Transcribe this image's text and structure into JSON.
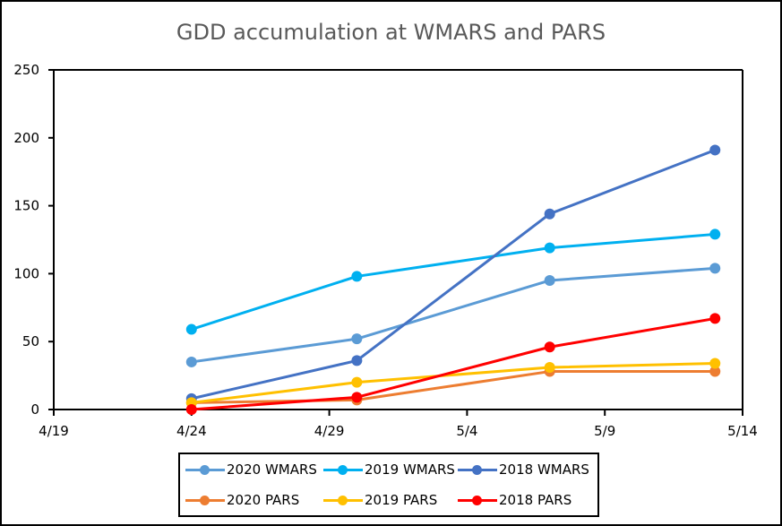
{
  "chart_data": {
    "type": "line",
    "title": "GDD accumulation at WMARS and PARS",
    "xlabel": "",
    "ylabel": "",
    "x_axis": {
      "type": "date",
      "ticks": [
        "4/19",
        "4/24",
        "4/29",
        "5/4",
        "5/9",
        "5/14"
      ],
      "range": [
        "4/19",
        "5/14"
      ]
    },
    "y_axis": {
      "ticks": [
        0,
        50,
        100,
        150,
        200,
        250
      ],
      "ylim": [
        0,
        250
      ]
    },
    "grid": false,
    "legend_position": "bottom",
    "x": [
      "4/24",
      "4/30",
      "5/7",
      "5/13"
    ],
    "series": [
      {
        "name": "2020 WMARS",
        "color": "#5B9BD5",
        "values": [
          35,
          52,
          95,
          104
        ]
      },
      {
        "name": "2019 WMARS",
        "color": "#00B0F0",
        "values": [
          59,
          98,
          119,
          129
        ]
      },
      {
        "name": "2018 WMARS",
        "color": "#4472C4",
        "values": [
          8,
          36,
          144,
          191
        ]
      },
      {
        "name": "2020 PARS",
        "color": "#ED7D31",
        "values": [
          5,
          7,
          28,
          28
        ]
      },
      {
        "name": "2019 PARS",
        "color": "#FFC000",
        "values": [
          5,
          20,
          31,
          34
        ]
      },
      {
        "name": "2018 PARS",
        "color": "#FF0000",
        "values": [
          0,
          9,
          46,
          67
        ]
      }
    ]
  }
}
